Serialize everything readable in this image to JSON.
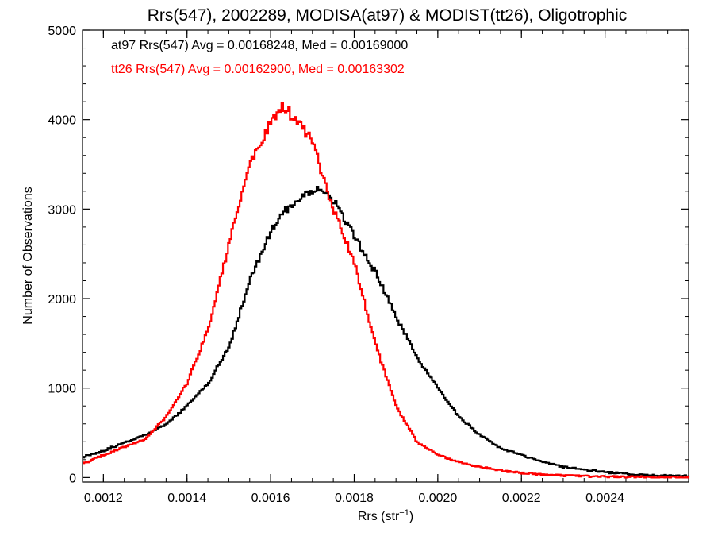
{
  "chart_data": {
    "type": "line",
    "title": "Rrs(547), 2002289, MODISA(at97) & MODIST(tt26), Oligotrophic",
    "xlabel": "Rrs (str",
    "xlabel_sup": "−1",
    "xlabel_close": ")",
    "ylabel": "Number of Observations",
    "xlim": [
      0.00115,
      0.0026
    ],
    "ylim": [
      -50,
      5000
    ],
    "xticks": [
      0.0012,
      0.0014,
      0.0016,
      0.0018,
      0.002,
      0.0022,
      0.0024
    ],
    "xtick_labels": [
      "0.0012",
      "0.0014",
      "0.0016",
      "0.0018",
      "0.0020",
      "0.0022",
      "0.0024"
    ],
    "yticks": [
      0,
      1000,
      2000,
      3000,
      4000,
      5000
    ],
    "ytick_labels": [
      "0",
      "1000",
      "2000",
      "3000",
      "4000",
      "5000"
    ],
    "annotations": [
      {
        "text": "at97 Rrs(547) Avg = 0.00168248, Med = 0.00169000",
        "color": "#000000"
      },
      {
        "text": "tt26 Rrs(547) Avg = 0.00162900, Med = 0.00163302",
        "color": "#ff0000"
      }
    ],
    "series": [
      {
        "color": "#000000",
        "x": [
          0.00115,
          0.0012,
          0.00125,
          0.0013,
          0.00135,
          0.0014,
          0.00145,
          0.0015,
          0.00155,
          0.0016,
          0.00163,
          0.00166,
          0.00168,
          0.0017,
          0.00172,
          0.00175,
          0.0018,
          0.00185,
          0.0019,
          0.00195,
          0.002,
          0.00205,
          0.0021,
          0.00215,
          0.0022,
          0.00225,
          0.0023,
          0.0024,
          0.0025,
          0.0026
        ],
        "values": [
          230,
          300,
          390,
          480,
          590,
          800,
          1050,
          1450,
          2200,
          2750,
          2950,
          3100,
          3150,
          3200,
          3250,
          3100,
          2700,
          2300,
          1800,
          1350,
          1000,
          680,
          480,
          330,
          250,
          180,
          120,
          60,
          25,
          15
        ]
      },
      {
        "color": "#ff0000",
        "x": [
          0.00115,
          0.0012,
          0.00125,
          0.0013,
          0.00135,
          0.0014,
          0.00145,
          0.0015,
          0.00155,
          0.0016,
          0.00162,
          0.00163,
          0.00164,
          0.00166,
          0.0017,
          0.00175,
          0.0018,
          0.00185,
          0.0019,
          0.00195,
          0.002,
          0.00205,
          0.0021,
          0.00215,
          0.0022,
          0.00225,
          0.0023,
          0.0024,
          0.0025,
          0.0026
        ],
        "values": [
          150,
          250,
          340,
          430,
          680,
          1050,
          1650,
          2600,
          3500,
          3950,
          4100,
          4150,
          4100,
          4000,
          3750,
          3000,
          2400,
          1500,
          800,
          400,
          260,
          170,
          120,
          80,
          50,
          35,
          20,
          10,
          5,
          3
        ]
      }
    ]
  }
}
